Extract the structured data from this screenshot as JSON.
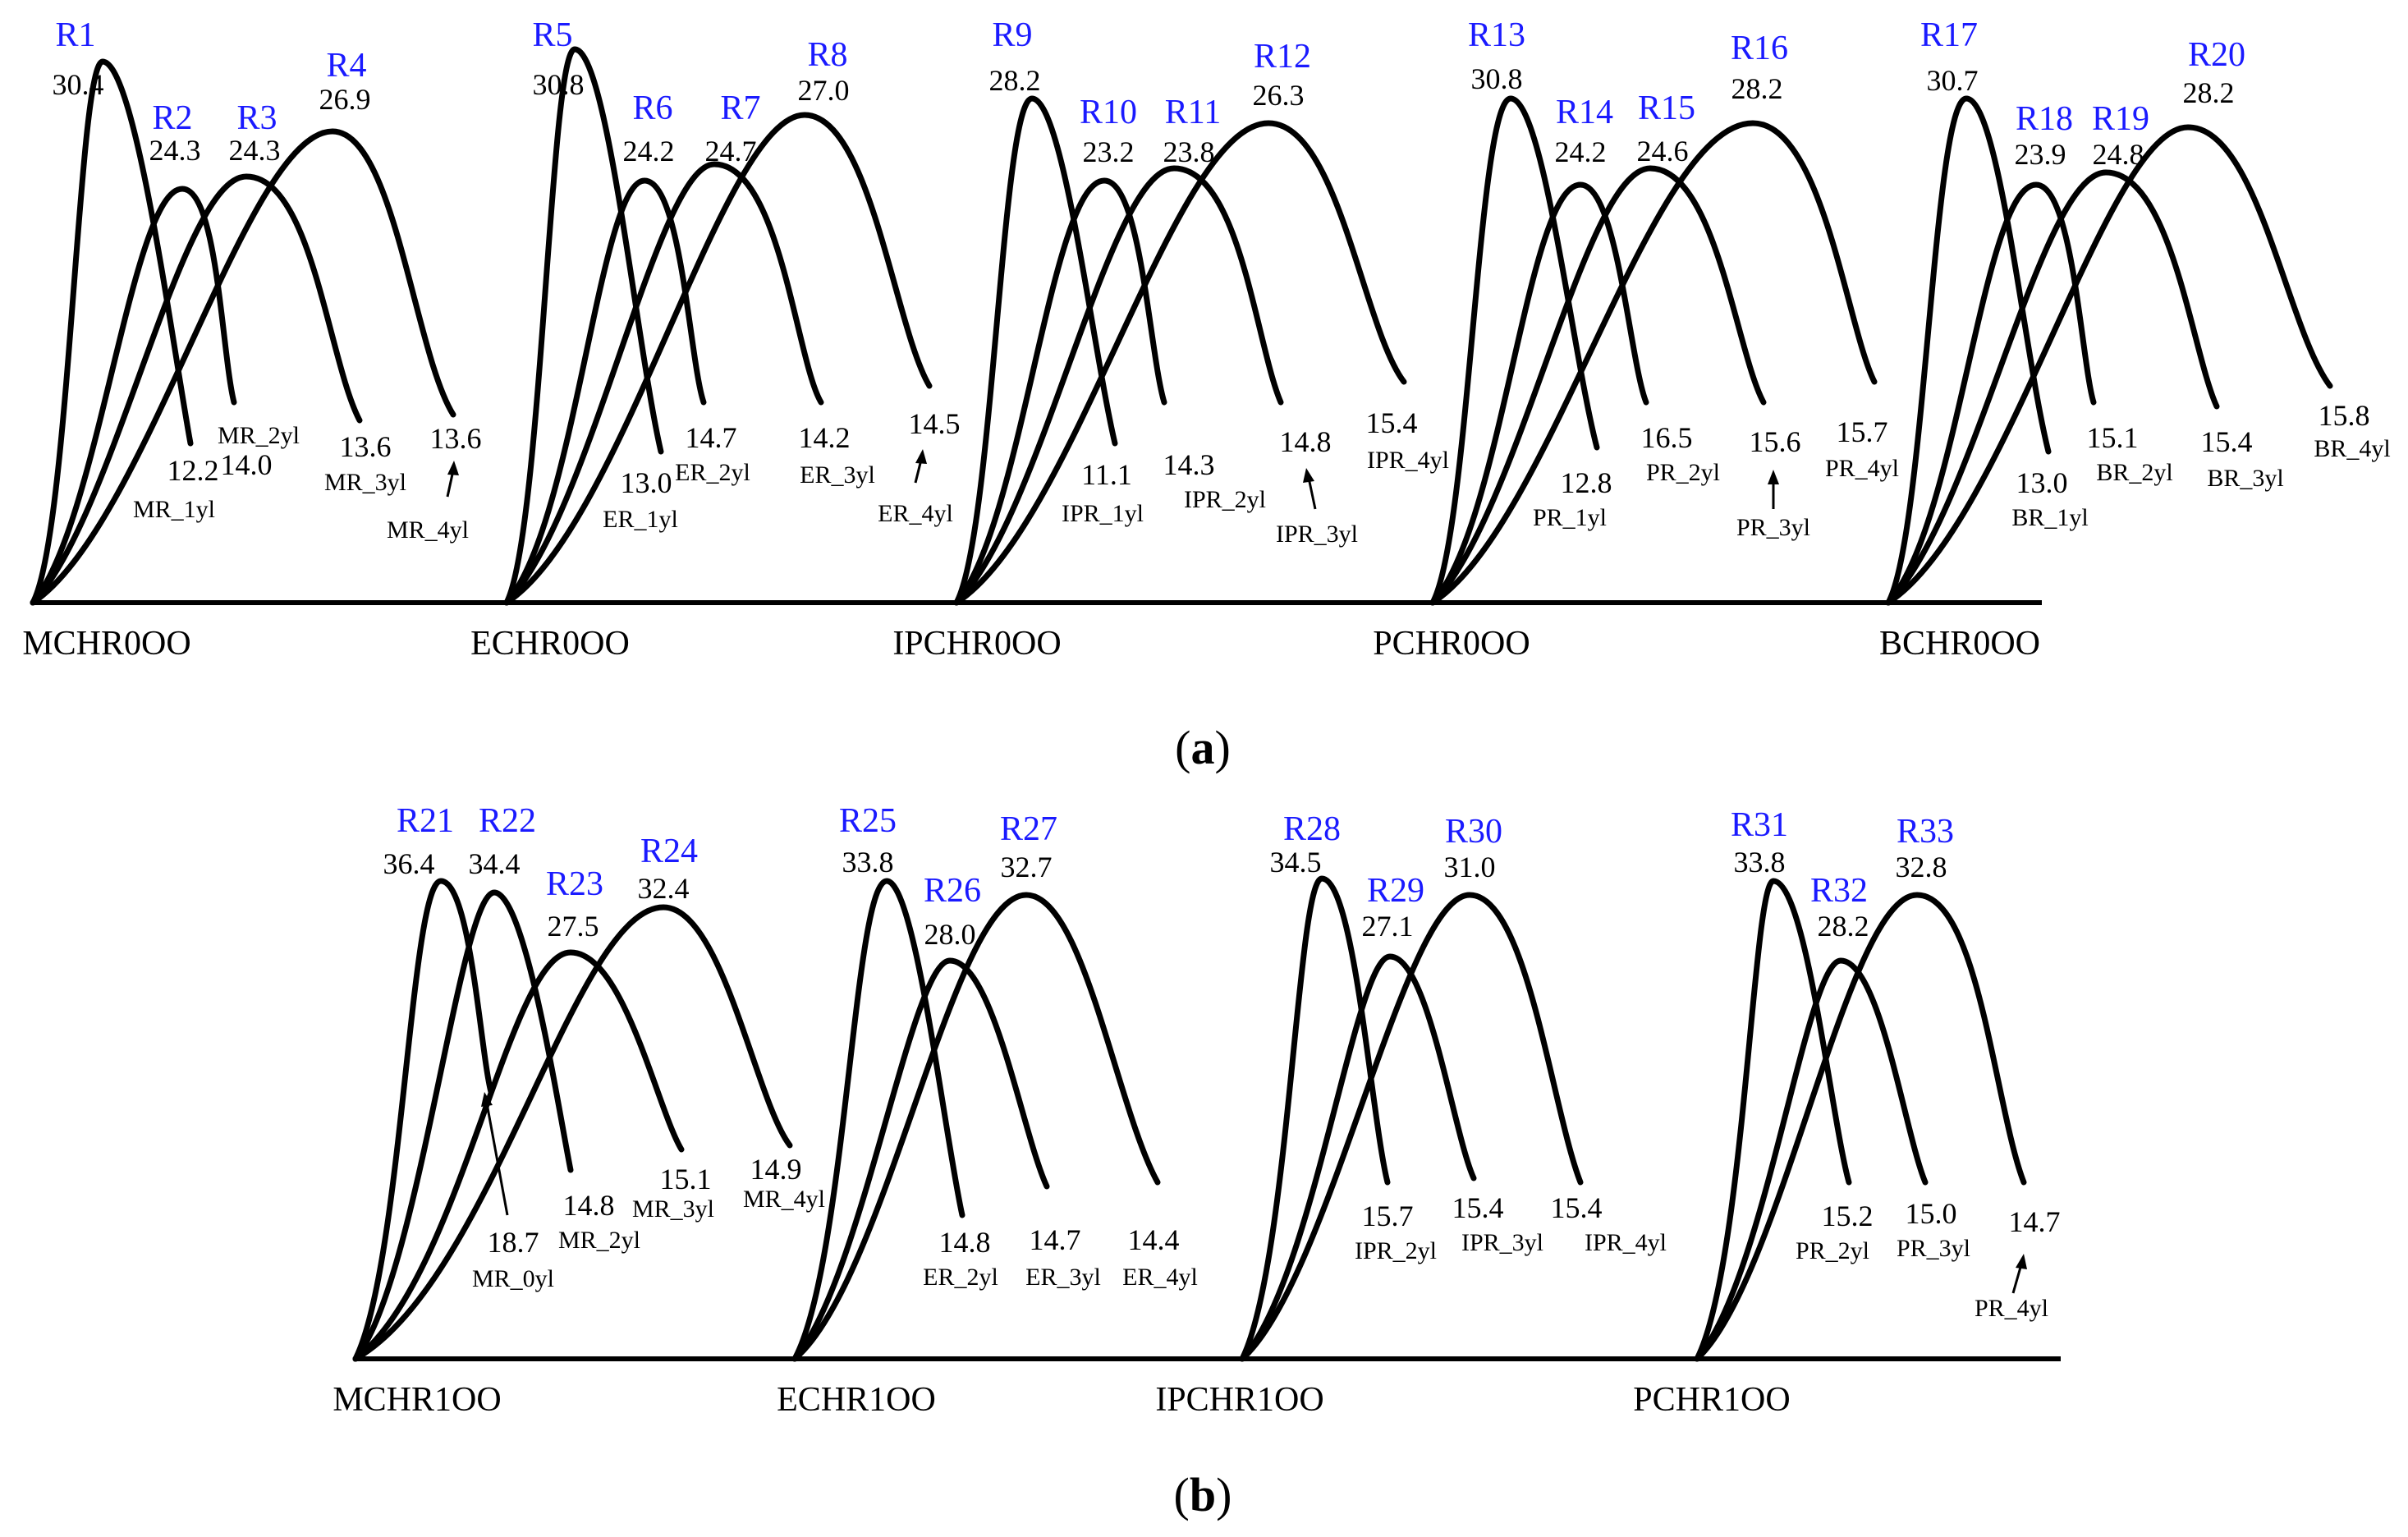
{
  "figure_a": {
    "caption": "(a)",
    "caption_letter": "a",
    "groups": [
      {
        "axis_label": "MCHR0OO",
        "curves": [
          {
            "id": "R1",
            "peak": "30.4",
            "end": "12.2",
            "label": "MR_1yl"
          },
          {
            "id": "R2",
            "peak": "24.3",
            "end": "14.0",
            "label": "MR_2yl"
          },
          {
            "id": "R3",
            "peak": "24.3",
            "end": "13.6",
            "label": "MR_3yl"
          },
          {
            "id": "R4",
            "peak": "26.9",
            "end": "13.6",
            "label": "MR_4yl"
          }
        ]
      },
      {
        "axis_label": "ECHR0OO",
        "curves": [
          {
            "id": "R5",
            "peak": "30.8",
            "end": "13.0",
            "label": "ER_1yl"
          },
          {
            "id": "R6",
            "peak": "24.2",
            "end": "14.7",
            "label": "ER_2yl"
          },
          {
            "id": "R7",
            "peak": "24.7",
            "end": "14.2",
            "label": "ER_3yl"
          },
          {
            "id": "R8",
            "peak": "27.0",
            "end": "14.5",
            "label": "ER_4yl"
          }
        ]
      },
      {
        "axis_label": "IPCHR0OO",
        "curves": [
          {
            "id": "R9",
            "peak": "28.2",
            "end": "11.1",
            "label": "IPR_1yl"
          },
          {
            "id": "R10",
            "peak": "23.2",
            "end": "14.3",
            "label": "IPR_2yl"
          },
          {
            "id": "R11",
            "peak": "23.8",
            "end": "14.8",
            "label": "IPR_3yl"
          },
          {
            "id": "R12",
            "peak": "26.3",
            "end": "15.4",
            "label": "IPR_4yl"
          }
        ]
      },
      {
        "axis_label": "PCHR0OO",
        "curves": [
          {
            "id": "R13",
            "peak": "30.8",
            "end": "12.8",
            "label": "PR_1yl"
          },
          {
            "id": "R14",
            "peak": "24.2",
            "end": "16.5",
            "label": "PR_2yl"
          },
          {
            "id": "R15",
            "peak": "24.6",
            "end": "15.6",
            "label": "PR_3yl"
          },
          {
            "id": "R16",
            "peak": "28.2",
            "end": "15.7",
            "label": "PR_4yl"
          }
        ]
      },
      {
        "axis_label": "BCHR0OO",
        "curves": [
          {
            "id": "R17",
            "peak": "30.7",
            "end": "13.0",
            "label": "BR_1yl"
          },
          {
            "id": "R18",
            "peak": "23.9",
            "end": "15.1",
            "label": "BR_2yl"
          },
          {
            "id": "R19",
            "peak": "24.8",
            "end": "15.4",
            "label": "BR_3yl"
          },
          {
            "id": "R20",
            "peak": "28.2",
            "end": "15.8",
            "label": "BR_4yl"
          }
        ]
      }
    ]
  },
  "figure_b": {
    "caption": "(b)",
    "caption_letter": "b",
    "groups": [
      {
        "axis_label": "MCHR1OO",
        "curves": [
          {
            "id": "R21",
            "peak": "36.4",
            "end": "18.7",
            "label": "MR_0yl"
          },
          {
            "id": "R22",
            "peak": "34.4",
            "end": "14.8",
            "label": "MR_2yl"
          },
          {
            "id": "R23",
            "peak": "27.5",
            "end": "15.1",
            "label": "MR_3yl"
          },
          {
            "id": "R24",
            "peak": "32.4",
            "end": "14.9",
            "label": "MR_4yl"
          }
        ]
      },
      {
        "axis_label": "ECHR1OO",
        "curves": [
          {
            "id": "R25",
            "peak": "33.8",
            "end": "14.8",
            "label": "ER_2yl"
          },
          {
            "id": "R26",
            "peak": "28.0",
            "end": "14.7",
            "label": "ER_3yl"
          },
          {
            "id": "R27",
            "peak": "32.7",
            "end": "14.4",
            "label": "ER_4yl"
          }
        ]
      },
      {
        "axis_label": "IPCHR1OO",
        "curves": [
          {
            "id": "R28",
            "peak": "34.5",
            "end": "15.7",
            "label": "IPR_2yl"
          },
          {
            "id": "R29",
            "peak": "27.1",
            "end": "15.4",
            "label": "IPR_3yl"
          },
          {
            "id": "R30",
            "peak": "31.0",
            "end": "15.4",
            "label": "IPR_4yl"
          }
        ]
      },
      {
        "axis_label": "PCHR1OO",
        "curves": [
          {
            "id": "R31",
            "peak": "33.8",
            "end": "15.2",
            "label": "PR_2yl"
          },
          {
            "id": "R32",
            "peak": "28.2",
            "end": "15.0",
            "label": "PR_3yl"
          },
          {
            "id": "R33",
            "peak": "32.8",
            "end": "14.7",
            "label": "PR_4yl"
          }
        ]
      }
    ]
  },
  "colors": {
    "curve": "#000000",
    "id_label": "#1a1aff",
    "text": "#000000",
    "background": "#ffffff"
  }
}
